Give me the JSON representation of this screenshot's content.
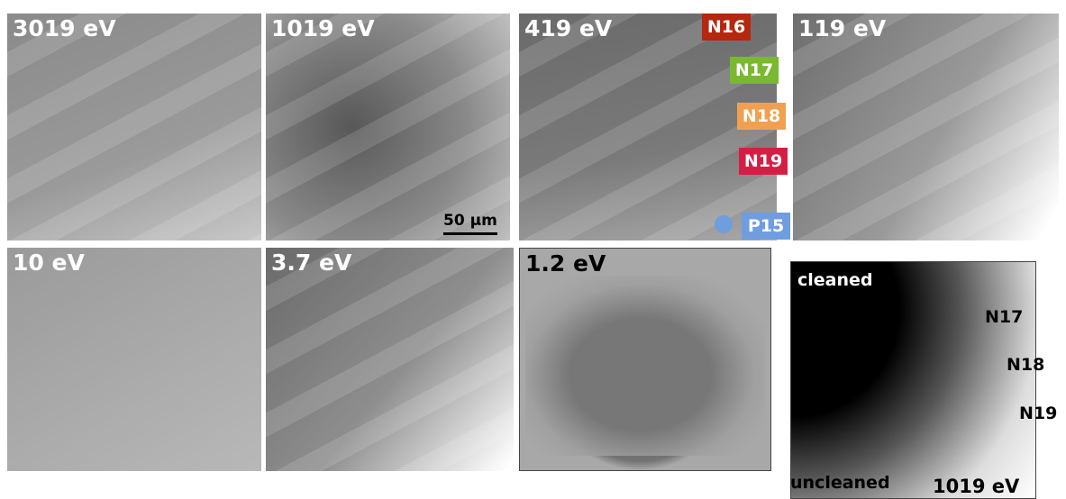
{
  "panels": [
    {
      "label": "3019 eV"
    },
    {
      "label": "1019 eV"
    },
    {
      "label": "419 eV"
    },
    {
      "label": "119 eV"
    },
    {
      "label": "10 eV"
    },
    {
      "label": "3.7 eV"
    },
    {
      "label": "1.2 eV"
    }
  ],
  "tags": [
    "N16",
    "N17",
    "N18",
    "N19",
    "P15"
  ],
  "scale_bar": "50 µm",
  "inset": {
    "labels": [
      "cleaned",
      "N17",
      "N18",
      "N19",
      "uncleaned"
    ],
    "energy": "1019 eV"
  }
}
